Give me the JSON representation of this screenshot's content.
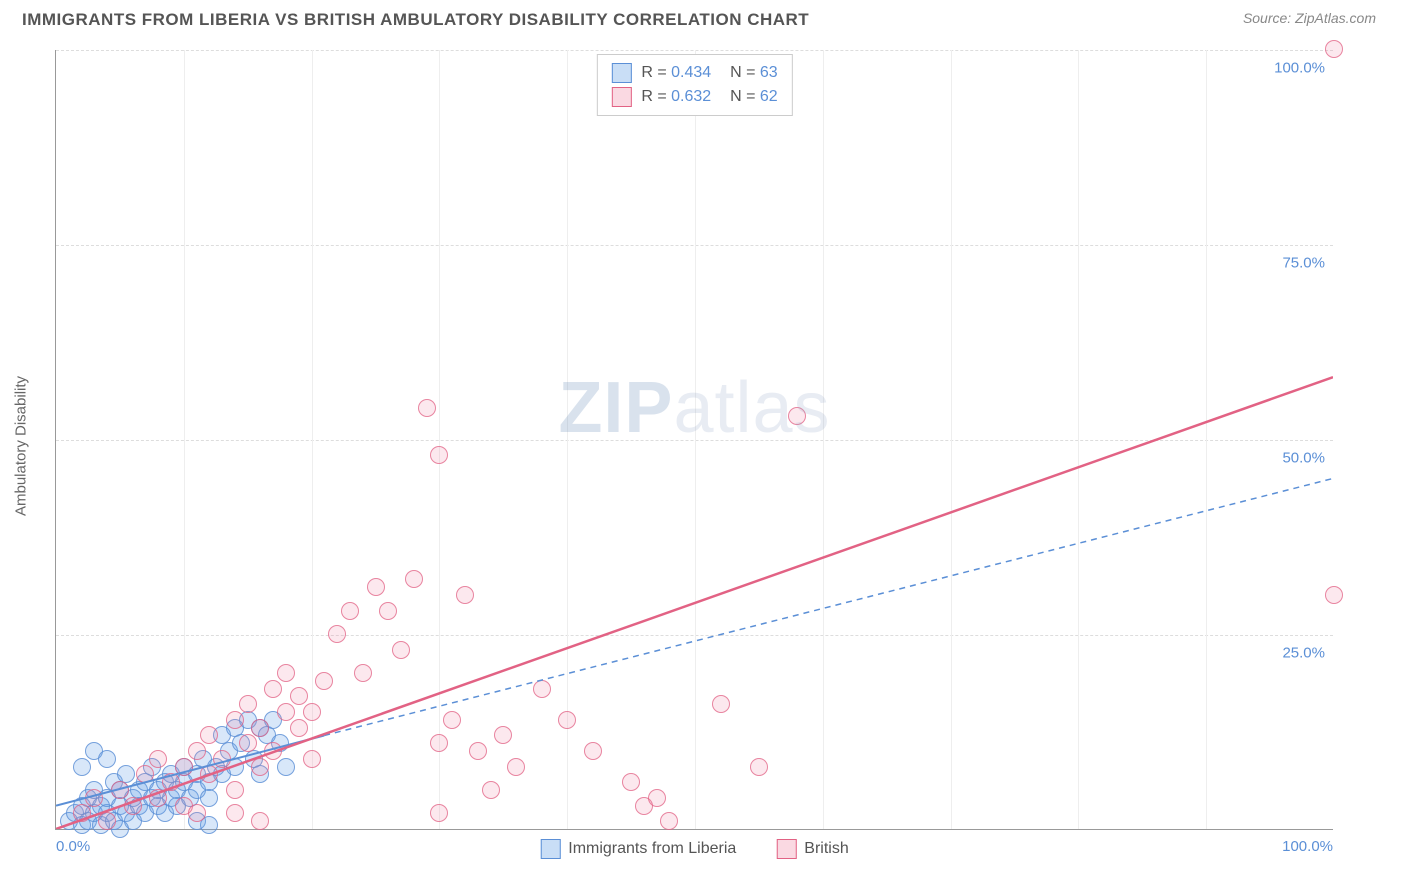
{
  "header": {
    "title": "IMMIGRANTS FROM LIBERIA VS BRITISH AMBULATORY DISABILITY CORRELATION CHART",
    "source_prefix": "Source: ",
    "source": "ZipAtlas.com"
  },
  "watermark": {
    "zip": "ZIP",
    "atlas": "atlas"
  },
  "chart": {
    "type": "scatter",
    "ylabel": "Ambulatory Disability",
    "xlim": [
      0,
      100
    ],
    "ylim": [
      0,
      100
    ],
    "yticks": [
      25,
      50,
      75,
      100
    ],
    "ytick_labels": [
      "25.0%",
      "50.0%",
      "75.0%",
      "100.0%"
    ],
    "xticks_minor": [
      10,
      20,
      30,
      40,
      50,
      60,
      70,
      80,
      90
    ],
    "x_start_label": "0.0%",
    "x_end_label": "100.0%",
    "grid_color": "#dddddd",
    "background_color": "#ffffff",
    "series": [
      {
        "name": "Immigrants from Liberia",
        "color_fill": "rgba(100,160,230,0.25)",
        "color_stroke": "#5b8fd6",
        "marker_size": 18,
        "R": "0.434",
        "N": "63",
        "trend": {
          "x1": 0,
          "y1": 3,
          "x2": 21,
          "y2": 12,
          "dash_x2": 100,
          "dash_y2": 45,
          "dash": true,
          "width": 2
        },
        "points": [
          [
            1,
            1
          ],
          [
            1.5,
            2
          ],
          [
            2,
            0.5
          ],
          [
            2,
            3
          ],
          [
            2.5,
            1
          ],
          [
            2.5,
            4
          ],
          [
            3,
            2
          ],
          [
            3,
            5
          ],
          [
            3.5,
            3
          ],
          [
            3.5,
            0.5
          ],
          [
            4,
            2
          ],
          [
            4,
            4
          ],
          [
            4.5,
            1
          ],
          [
            4.5,
            6
          ],
          [
            5,
            3
          ],
          [
            5,
            5
          ],
          [
            5.5,
            2
          ],
          [
            5.5,
            7
          ],
          [
            6,
            4
          ],
          [
            6,
            1
          ],
          [
            6.5,
            3
          ],
          [
            6.5,
            5
          ],
          [
            7,
            6
          ],
          [
            7,
            2
          ],
          [
            7.5,
            4
          ],
          [
            7.5,
            8
          ],
          [
            8,
            3
          ],
          [
            8,
            5
          ],
          [
            8.5,
            6
          ],
          [
            8.5,
            2
          ],
          [
            9,
            7
          ],
          [
            9,
            4
          ],
          [
            9.5,
            5
          ],
          [
            9.5,
            3
          ],
          [
            10,
            6
          ],
          [
            10,
            8
          ],
          [
            10.5,
            4
          ],
          [
            11,
            7
          ],
          [
            11,
            5
          ],
          [
            11.5,
            9
          ],
          [
            12,
            6
          ],
          [
            12,
            4
          ],
          [
            12.5,
            8
          ],
          [
            13,
            12
          ],
          [
            13,
            7
          ],
          [
            13.5,
            10
          ],
          [
            14,
            13
          ],
          [
            14,
            8
          ],
          [
            14.5,
            11
          ],
          [
            15,
            14
          ],
          [
            15.5,
            9
          ],
          [
            16,
            13
          ],
          [
            16,
            7
          ],
          [
            16.5,
            12
          ],
          [
            17,
            14
          ],
          [
            17.5,
            11
          ],
          [
            18,
            8
          ],
          [
            11,
            1
          ],
          [
            12,
            0.5
          ],
          [
            2,
            8
          ],
          [
            3,
            10
          ],
          [
            5,
            0
          ],
          [
            4,
            9
          ]
        ]
      },
      {
        "name": "British",
        "color_fill": "rgba(240,130,160,0.18)",
        "color_stroke": "#e26284",
        "marker_size": 18,
        "R": "0.632",
        "N": "62",
        "trend": {
          "x1": 0,
          "y1": 0,
          "x2": 100,
          "y2": 58,
          "dash": false,
          "width": 2.5
        },
        "points": [
          [
            2,
            2
          ],
          [
            3,
            4
          ],
          [
            4,
            1
          ],
          [
            5,
            5
          ],
          [
            6,
            3
          ],
          [
            7,
            7
          ],
          [
            8,
            4
          ],
          [
            8,
            9
          ],
          [
            9,
            6
          ],
          [
            10,
            8
          ],
          [
            10,
            3
          ],
          [
            11,
            10
          ],
          [
            12,
            7
          ],
          [
            12,
            12
          ],
          [
            13,
            9
          ],
          [
            14,
            5
          ],
          [
            14,
            14
          ],
          [
            15,
            11
          ],
          [
            15,
            16
          ],
          [
            16,
            8
          ],
          [
            16,
            13
          ],
          [
            17,
            18
          ],
          [
            17,
            10
          ],
          [
            18,
            15
          ],
          [
            18,
            20
          ],
          [
            19,
            13
          ],
          [
            19,
            17
          ],
          [
            20,
            15
          ],
          [
            20,
            9
          ],
          [
            21,
            19
          ],
          [
            22,
            25
          ],
          [
            23,
            28
          ],
          [
            24,
            20
          ],
          [
            25,
            31
          ],
          [
            26,
            28
          ],
          [
            27,
            23
          ],
          [
            28,
            32
          ],
          [
            29,
            54
          ],
          [
            30,
            11
          ],
          [
            30,
            2
          ],
          [
            31,
            14
          ],
          [
            32,
            30
          ],
          [
            33,
            10
          ],
          [
            34,
            5
          ],
          [
            35,
            12
          ],
          [
            36,
            8
          ],
          [
            38,
            18
          ],
          [
            40,
            14
          ],
          [
            42,
            10
          ],
          [
            45,
            6
          ],
          [
            46,
            3
          ],
          [
            47,
            4
          ],
          [
            48,
            1
          ],
          [
            52,
            16
          ],
          [
            55,
            8
          ],
          [
            58,
            53
          ],
          [
            30,
            48
          ],
          [
            14,
            2
          ],
          [
            16,
            1
          ],
          [
            11,
            2
          ],
          [
            100,
            100
          ],
          [
            100,
            30
          ]
        ]
      }
    ],
    "legend_bottom": [
      {
        "swatch": "blue",
        "label": "Immigrants from Liberia"
      },
      {
        "swatch": "pink",
        "label": "British"
      }
    ],
    "legend_top_labels": {
      "R": "R =",
      "N": "N ="
    }
  }
}
